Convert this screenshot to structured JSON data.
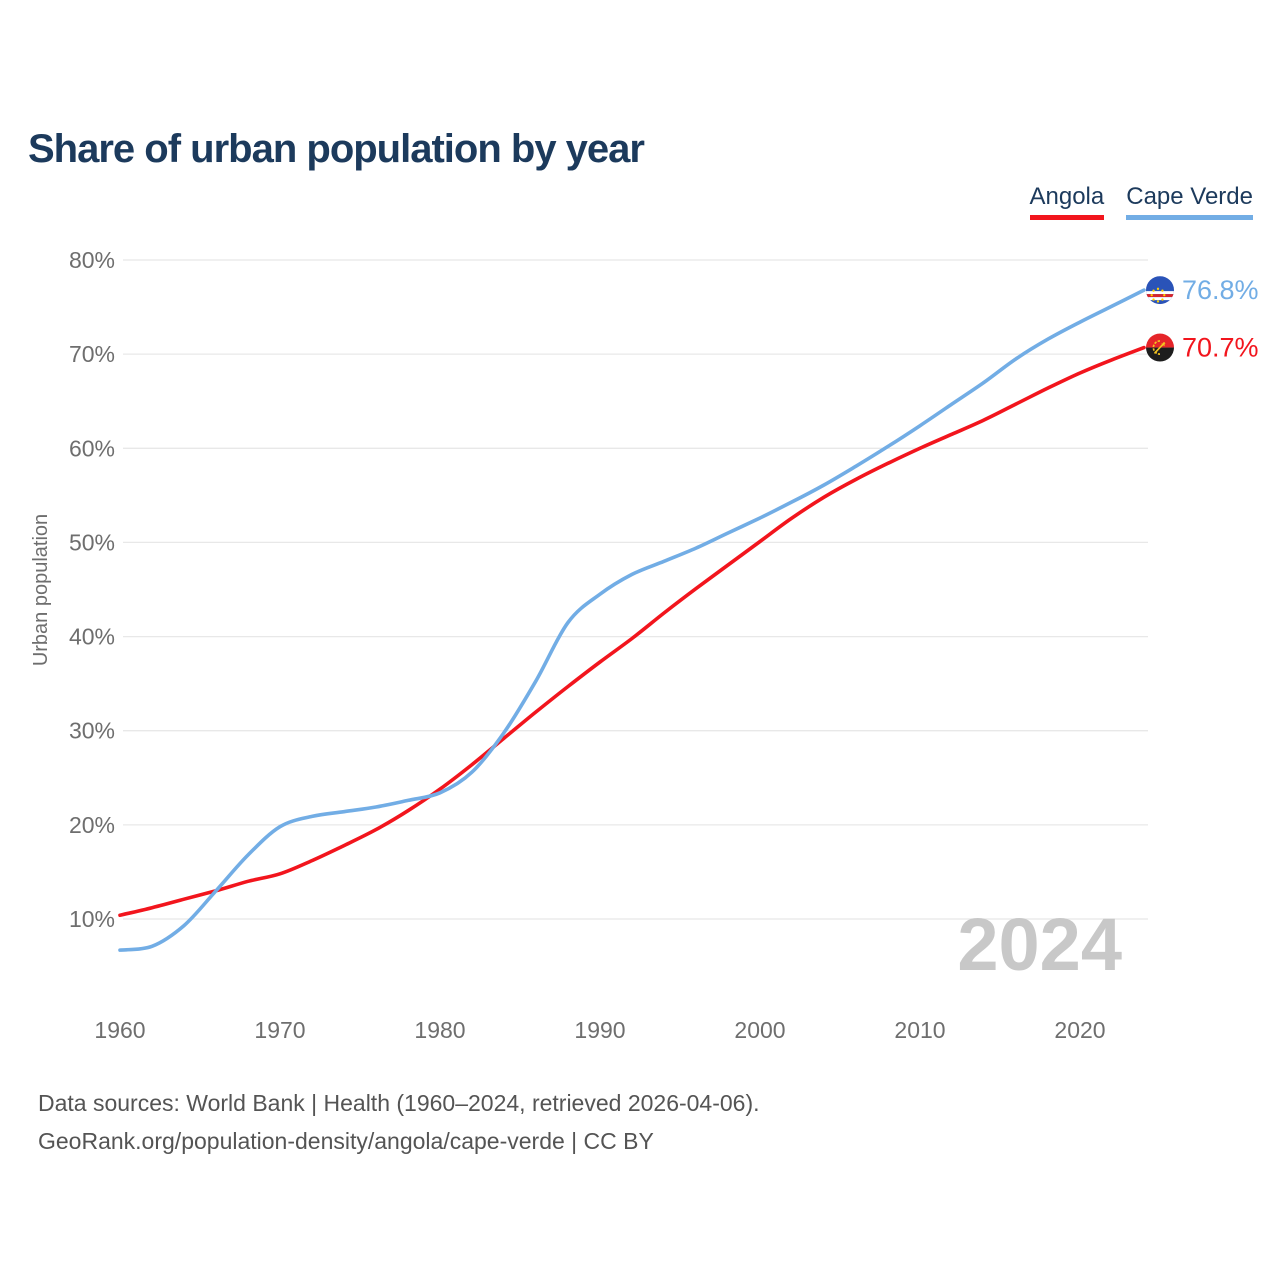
{
  "page": {
    "background": "#ffffff"
  },
  "header": {
    "title": "Share of urban population by year"
  },
  "colors": {
    "title_text": "#1c3a5c",
    "legend_text": "#1c3a5c",
    "angola_red": "#f2151d",
    "cape_verde_blue": "#72ade5",
    "tick_label_gray": "#6e6e6e",
    "gridline_gray": "#e8e8e8",
    "watermark_gray": "#c8c8c8",
    "footer_gray": "#545454",
    "flag_cv_blue": "#2a53b8",
    "flag_cv_red": "#d7252c",
    "flag_cv_star_yellow": "#ffd100",
    "flag_ao_red": "#e52529",
    "flag_ao_black": "#1d1d1d",
    "flag_ao_yellow": "#f3c320"
  },
  "chart_data": {
    "type": "line",
    "title": "Share of urban population by year",
    "xlabel": "",
    "ylabel": "Urban population",
    "xlim": [
      1960,
      2024
    ],
    "ylim": [
      10,
      80
    ],
    "grid": "horizontal",
    "legend_position": "top-right",
    "watermark": "2024",
    "x_ticks": [
      {
        "value": 1960,
        "label": "1960"
      },
      {
        "value": 1970,
        "label": "1970"
      },
      {
        "value": 1980,
        "label": "1980"
      },
      {
        "value": 1990,
        "label": "1990"
      },
      {
        "value": 2000,
        "label": "2000"
      },
      {
        "value": 2010,
        "label": "2010"
      },
      {
        "value": 2020,
        "label": "2020"
      }
    ],
    "y_ticks": [
      {
        "value": 10,
        "label": "10%"
      },
      {
        "value": 20,
        "label": "20%"
      },
      {
        "value": 30,
        "label": "30%"
      },
      {
        "value": 40,
        "label": "40%"
      },
      {
        "value": 50,
        "label": "50%"
      },
      {
        "value": 60,
        "label": "60%"
      },
      {
        "value": 70,
        "label": "70%"
      },
      {
        "value": 80,
        "label": "80%"
      }
    ],
    "x": [
      1960,
      1962,
      1964,
      1966,
      1968,
      1970,
      1972,
      1974,
      1976,
      1978,
      1980,
      1982,
      1984,
      1986,
      1988,
      1990,
      1992,
      1994,
      1996,
      1998,
      2000,
      2002,
      2004,
      2006,
      2008,
      2010,
      2012,
      2014,
      2016,
      2018,
      2020,
      2022,
      2024
    ],
    "series": [
      {
        "name": "Angola",
        "color": "#f2151d",
        "flag": "angola",
        "end_label": "70.7%",
        "end_value": 70.7,
        "values": [
          10.4,
          11.2,
          12.1,
          13.0,
          14.0,
          14.8,
          16.2,
          17.8,
          19.5,
          21.5,
          23.8,
          26.4,
          29.2,
          32.0,
          34.7,
          37.3,
          39.8,
          42.5,
          45.1,
          47.6,
          50.1,
          52.6,
          54.8,
          56.7,
          58.4,
          60.0,
          61.5,
          63.0,
          64.7,
          66.4,
          68.0,
          69.4,
          70.7
        ]
      },
      {
        "name": "Cape Verde",
        "color": "#72ade5",
        "flag": "cape-verde",
        "end_label": "76.8%",
        "end_value": 76.8,
        "values": [
          6.7,
          7.1,
          9.3,
          13.0,
          16.8,
          19.8,
          20.9,
          21.4,
          21.9,
          22.6,
          23.4,
          25.6,
          29.8,
          35.3,
          41.5,
          44.5,
          46.6,
          48.0,
          49.4,
          51.0,
          52.6,
          54.3,
          56.1,
          58.1,
          60.2,
          62.4,
          64.7,
          67.0,
          69.5,
          71.6,
          73.4,
          75.1,
          76.8
        ]
      }
    ]
  },
  "footer": {
    "line1": "Data sources: World Bank | Health (1960–2024, retrieved 2026-04-06).",
    "line2": "GeoRank.org/population-density/angola/cape-verde | CC BY"
  }
}
